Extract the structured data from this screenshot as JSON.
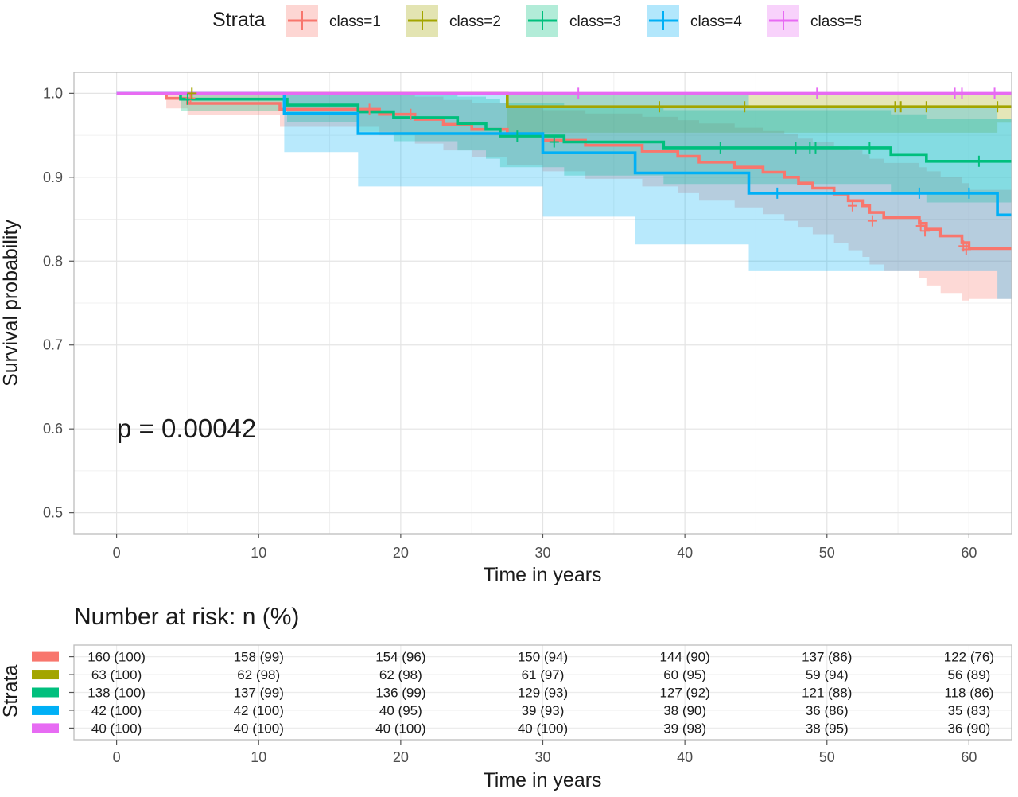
{
  "legend": {
    "title": "Strata",
    "items": [
      {
        "label": "class=1",
        "color": "#F8766D"
      },
      {
        "label": "class=2",
        "color": "#A3A500"
      },
      {
        "label": "class=3",
        "color": "#00BF7D"
      },
      {
        "label": "class=4",
        "color": "#00B0F6"
      },
      {
        "label": "class=5",
        "color": "#E76BF3"
      }
    ]
  },
  "annotation": {
    "pvalue": "p = 0.00042"
  },
  "chart_data": {
    "type": "line",
    "subtype": "kaplan-meier",
    "xlabel": "Time in years",
    "ylabel": "Survival probability",
    "xlim": [
      -3,
      63
    ],
    "ylim": [
      0.475,
      1.025
    ],
    "x_ticks": [
      0,
      10,
      20,
      30,
      40,
      50,
      60
    ],
    "y_ticks": [
      0.5,
      0.6,
      0.7,
      0.8,
      0.9,
      1.0
    ],
    "y_tick_labels": [
      "0.5",
      "0.6",
      "0.7",
      "0.8",
      "0.9",
      "1.0"
    ],
    "grid": true,
    "confidence_bands": true,
    "series": [
      {
        "name": "class=1",
        "color": "#F8766D",
        "steps": [
          [
            0,
            1.0
          ],
          [
            3.5,
            0.994
          ],
          [
            5.0,
            0.988
          ],
          [
            11.5,
            0.981
          ],
          [
            18.5,
            0.975
          ],
          [
            21.0,
            0.969
          ],
          [
            23.0,
            0.963
          ],
          [
            25.0,
            0.957
          ],
          [
            27.5,
            0.95
          ],
          [
            30.0,
            0.944
          ],
          [
            33.0,
            0.938
          ],
          [
            37.0,
            0.931
          ],
          [
            39.5,
            0.925
          ],
          [
            41.0,
            0.918
          ],
          [
            43.5,
            0.912
          ],
          [
            45.5,
            0.906
          ],
          [
            47.0,
            0.9
          ],
          [
            48.0,
            0.893
          ],
          [
            49.0,
            0.887
          ],
          [
            50.5,
            0.88
          ],
          [
            51.5,
            0.872
          ],
          [
            52.5,
            0.866
          ],
          [
            53.0,
            0.858
          ],
          [
            54.0,
            0.852
          ],
          [
            56.5,
            0.845
          ],
          [
            57.0,
            0.838
          ],
          [
            58.0,
            0.83
          ],
          [
            59.5,
            0.822
          ],
          [
            60.0,
            0.815
          ]
        ],
        "end": 63,
        "censor": [
          [
            5.2,
            0.994
          ],
          [
            17.8,
            0.981
          ],
          [
            20.7,
            0.975
          ],
          [
            51.8,
            0.866
          ],
          [
            53.2,
            0.848
          ],
          [
            56.6,
            0.842
          ],
          [
            56.9,
            0.836
          ],
          [
            59.6,
            0.818
          ],
          [
            59.8,
            0.814
          ]
        ],
        "ci": [
          [
            0,
            1.0,
            1.0
          ],
          [
            3.5,
            0.982,
            1.0
          ],
          [
            5.0,
            0.974,
            1.0
          ],
          [
            11.5,
            0.96,
            1.0
          ],
          [
            18.5,
            0.95,
            0.999
          ],
          [
            21.0,
            0.94,
            0.996
          ],
          [
            23.0,
            0.932,
            0.992
          ],
          [
            25.0,
            0.924,
            0.988
          ],
          [
            27.5,
            0.915,
            0.984
          ],
          [
            30.0,
            0.907,
            0.98
          ],
          [
            33.0,
            0.898,
            0.976
          ],
          [
            37.0,
            0.889,
            0.972
          ],
          [
            39.5,
            0.881,
            0.968
          ],
          [
            41.0,
            0.872,
            0.964
          ],
          [
            43.5,
            0.864,
            0.959
          ],
          [
            45.5,
            0.856,
            0.955
          ],
          [
            47.0,
            0.848,
            0.951
          ],
          [
            48.0,
            0.84,
            0.946
          ],
          [
            49.0,
            0.832,
            0.942
          ],
          [
            50.5,
            0.822,
            0.937
          ],
          [
            51.5,
            0.813,
            0.932
          ],
          [
            52.5,
            0.805,
            0.927
          ],
          [
            53.0,
            0.796,
            0.922
          ],
          [
            54.0,
            0.788,
            0.917
          ],
          [
            56.5,
            0.78,
            0.912
          ],
          [
            57.0,
            0.771,
            0.907
          ],
          [
            58.0,
            0.762,
            0.9
          ],
          [
            59.5,
            0.753,
            0.893
          ],
          [
            60.0,
            0.755,
            0.885
          ]
        ]
      },
      {
        "name": "class=2",
        "color": "#A3A500",
        "steps": [
          [
            0,
            1.0
          ],
          [
            27.5,
            0.984
          ]
        ],
        "end": 63,
        "censor": [
          [
            5.3,
            1.0
          ],
          [
            38.2,
            0.984
          ],
          [
            44.2,
            0.984
          ],
          [
            54.8,
            0.984
          ],
          [
            55.2,
            0.984
          ],
          [
            57.0,
            0.984
          ],
          [
            62.0,
            0.984
          ]
        ],
        "ci": [
          [
            0,
            1.0,
            1.0
          ],
          [
            27.5,
            0.953,
            1.0
          ],
          [
            44.5,
            0.953,
            1.0
          ],
          [
            62.0,
            0.965,
            1.0
          ]
        ]
      },
      {
        "name": "class=3",
        "color": "#00BF7D",
        "steps": [
          [
            0,
            1.0
          ],
          [
            4.5,
            0.993
          ],
          [
            12.0,
            0.986
          ],
          [
            17.0,
            0.978
          ],
          [
            19.5,
            0.971
          ],
          [
            24.0,
            0.964
          ],
          [
            26.0,
            0.957
          ],
          [
            27.0,
            0.949
          ],
          [
            31.5,
            0.942
          ],
          [
            38.5,
            0.935
          ],
          [
            54.5,
            0.927
          ],
          [
            57.0,
            0.919
          ]
        ],
        "end": 63,
        "censor": [
          [
            5.0,
            0.993
          ],
          [
            28.2,
            0.949
          ],
          [
            30.8,
            0.942
          ],
          [
            42.5,
            0.935
          ],
          [
            47.8,
            0.935
          ],
          [
            48.8,
            0.935
          ],
          [
            49.2,
            0.935
          ],
          [
            53.0,
            0.935
          ],
          [
            60.7,
            0.919
          ]
        ],
        "ci": [
          [
            0,
            1.0,
            1.0
          ],
          [
            4.5,
            0.979,
            1.0
          ],
          [
            12.0,
            0.966,
            1.0
          ],
          [
            17.0,
            0.954,
            1.0
          ],
          [
            19.5,
            0.943,
            0.999
          ],
          [
            24.0,
            0.932,
            0.996
          ],
          [
            26.0,
            0.922,
            0.993
          ],
          [
            27.0,
            0.912,
            0.989
          ],
          [
            31.5,
            0.902,
            0.985
          ],
          [
            38.5,
            0.892,
            0.98
          ],
          [
            54.5,
            0.88,
            0.975
          ],
          [
            57.0,
            0.87,
            0.97
          ]
        ]
      },
      {
        "name": "class=4",
        "color": "#00B0F6",
        "steps": [
          [
            0,
            1.0
          ],
          [
            11.8,
            0.976
          ],
          [
            17.0,
            0.952
          ],
          [
            30.0,
            0.929
          ],
          [
            36.5,
            0.905
          ],
          [
            44.5,
            0.881
          ],
          [
            62.0,
            0.855
          ]
        ],
        "end": 63,
        "censor": [
          [
            46.5,
            0.881
          ],
          [
            56.5,
            0.881
          ],
          [
            60.0,
            0.881
          ]
        ],
        "ci": [
          [
            0,
            1.0,
            1.0
          ],
          [
            11.8,
            0.93,
            1.0
          ],
          [
            17.0,
            0.889,
            1.0
          ],
          [
            30.0,
            0.853,
            1.0
          ],
          [
            36.5,
            0.82,
            0.999
          ],
          [
            44.5,
            0.788,
            0.985
          ],
          [
            62.0,
            0.755,
            0.97
          ]
        ]
      },
      {
        "name": "class=5",
        "color": "#E76BF3",
        "steps": [
          [
            0,
            1.0
          ]
        ],
        "end": 63,
        "censor": [
          [
            32.5,
            1.0
          ],
          [
            49.3,
            1.0
          ],
          [
            59.0,
            1.0
          ],
          [
            59.5,
            1.0
          ],
          [
            61.8,
            1.0
          ]
        ],
        "ci": [
          [
            0,
            1.0,
            1.0
          ]
        ]
      }
    ]
  },
  "risk_table": {
    "title": "Number at risk: n (%)",
    "ylabel": "Strata",
    "xlabel": "Time in years",
    "times": [
      0,
      10,
      20,
      30,
      40,
      50,
      60
    ],
    "rows": [
      {
        "color": "#F8766D",
        "cells": [
          "160 (100)",
          "158 (99)",
          "154 (96)",
          "150 (94)",
          "144 (90)",
          "137 (86)",
          "122 (76)"
        ]
      },
      {
        "color": "#A3A500",
        "cells": [
          "63 (100)",
          "62 (98)",
          "62 (98)",
          "61 (97)",
          "60 (95)",
          "59 (94)",
          "56 (89)"
        ]
      },
      {
        "color": "#00BF7D",
        "cells": [
          "138 (100)",
          "137 (99)",
          "136 (99)",
          "129 (93)",
          "127 (92)",
          "121 (88)",
          "118 (86)"
        ]
      },
      {
        "color": "#00B0F6",
        "cells": [
          "42 (100)",
          "42 (100)",
          "40 (95)",
          "39 (93)",
          "38 (90)",
          "36 (86)",
          "35 (83)"
        ]
      },
      {
        "color": "#E76BF3",
        "cells": [
          "40 (100)",
          "40 (100)",
          "40 (100)",
          "40 (100)",
          "39 (98)",
          "38 (95)",
          "36 (90)"
        ]
      }
    ]
  }
}
